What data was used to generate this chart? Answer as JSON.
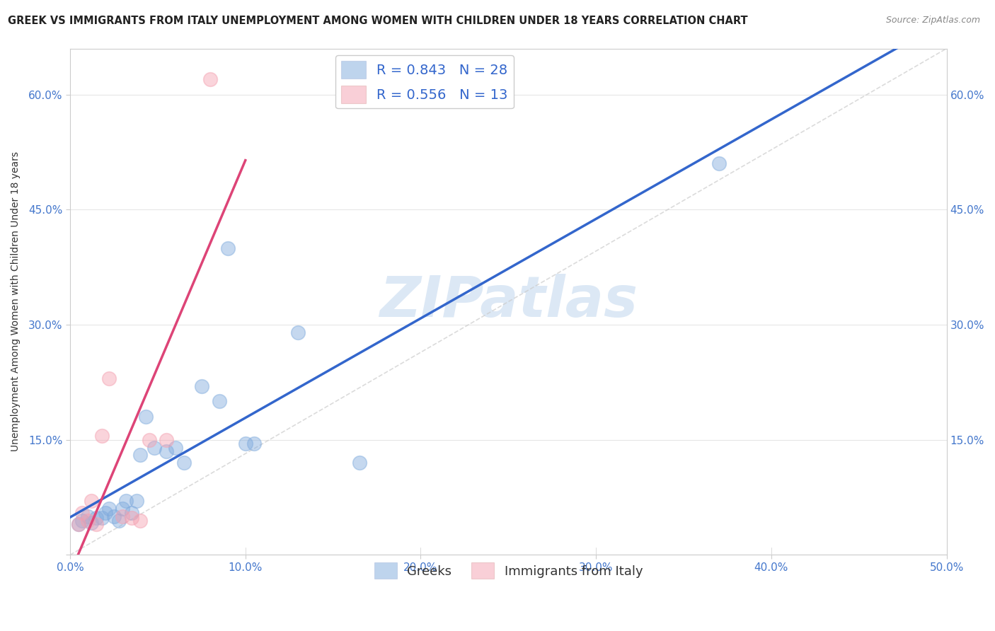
{
  "title": "GREEK VS IMMIGRANTS FROM ITALY UNEMPLOYMENT AMONG WOMEN WITH CHILDREN UNDER 18 YEARS CORRELATION CHART",
  "source_text": "Source: ZipAtlas.com",
  "ylabel_text": "Unemployment Among Women with Children Under 18 years",
  "xlim": [
    0.0,
    0.5
  ],
  "ylim": [
    0.0,
    0.66
  ],
  "xticks": [
    0.0,
    0.1,
    0.2,
    0.3,
    0.4,
    0.5
  ],
  "yticks": [
    0.0,
    0.15,
    0.3,
    0.45,
    0.6
  ],
  "ytick_labels": [
    "",
    "15.0%",
    "30.0%",
    "45.0%",
    "60.0%"
  ],
  "xtick_labels": [
    "0.0%",
    "10.0%",
    "20.0%",
    "30.0%",
    "40.0%",
    "50.0%"
  ],
  "background_color": "#ffffff",
  "grid_color": "#e0e0e0",
  "watermark_text": "ZIPatlas",
  "watermark_color": "#dce8f5",
  "blue_color": "#7faadd",
  "pink_color": "#f4a0b0",
  "blue_line_color": "#3366cc",
  "pink_line_color": "#dd4477",
  "legend_R_blue": "0.843",
  "legend_N_blue": "28",
  "legend_R_pink": "0.556",
  "legend_N_pink": "13",
  "blue_label": "Greeks",
  "pink_label": "Immigrants from Italy",
  "blue_x": [
    0.005,
    0.007,
    0.01,
    0.012,
    0.015,
    0.018,
    0.02,
    0.022,
    0.025,
    0.028,
    0.03,
    0.032,
    0.035,
    0.038,
    0.04,
    0.043,
    0.048,
    0.055,
    0.06,
    0.065,
    0.075,
    0.085,
    0.09,
    0.1,
    0.105,
    0.13,
    0.165,
    0.37
  ],
  "blue_y": [
    0.04,
    0.045,
    0.05,
    0.042,
    0.048,
    0.048,
    0.055,
    0.06,
    0.05,
    0.045,
    0.06,
    0.07,
    0.055,
    0.07,
    0.13,
    0.18,
    0.14,
    0.135,
    0.14,
    0.12,
    0.22,
    0.2,
    0.4,
    0.145,
    0.145,
    0.29,
    0.12,
    0.51
  ],
  "pink_x": [
    0.005,
    0.007,
    0.01,
    0.012,
    0.015,
    0.018,
    0.022,
    0.03,
    0.035,
    0.04,
    0.045,
    0.055,
    0.08
  ],
  "pink_y": [
    0.04,
    0.055,
    0.045,
    0.07,
    0.04,
    0.155,
    0.23,
    0.05,
    0.048,
    0.045,
    0.15,
    0.15,
    0.62
  ],
  "marker_size": 200,
  "title_fontsize": 11,
  "axis_label_fontsize": 10,
  "tick_fontsize": 11,
  "legend_fontsize": 14
}
